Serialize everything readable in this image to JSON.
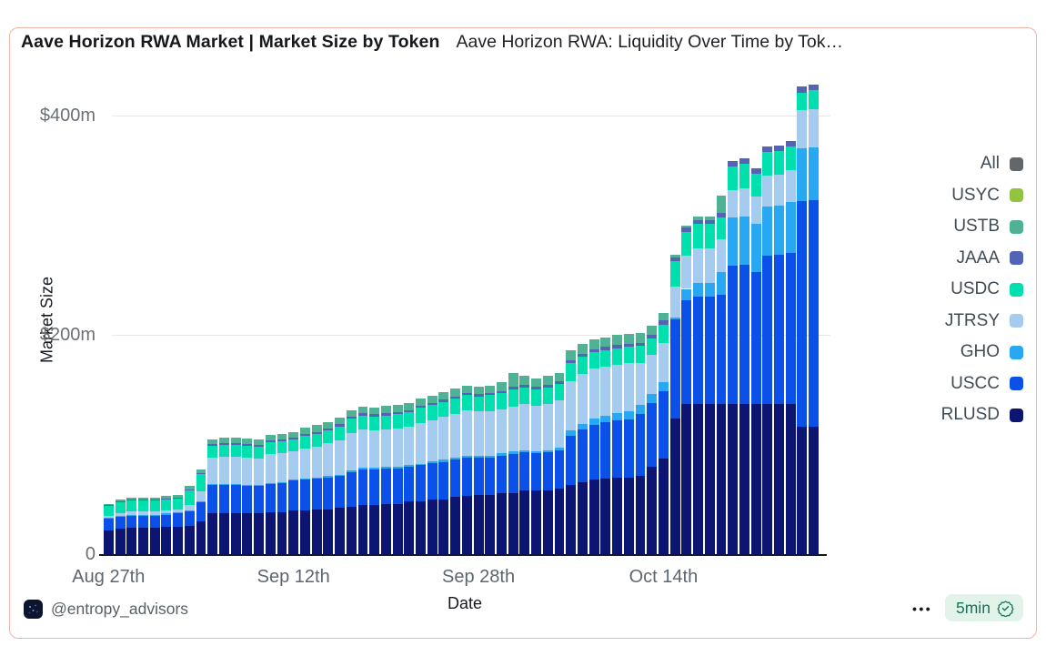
{
  "card": {
    "titles": {
      "primary": "Aave Horizon RWA Market | Market Size by Token",
      "secondary": "Aave Horizon RWA: Liquidity Over Time by Tok…"
    },
    "footer": {
      "handle": "@entropy_advisors",
      "menu": "•••",
      "badge": {
        "label": "5min",
        "icon": "check-seal-icon"
      }
    }
  },
  "chart_data": {
    "type": "bar",
    "variant": "stacked",
    "title": "Aave Horizon RWA Market | Market Size by Token",
    "xlabel": "Date",
    "ylabel": "Market Size",
    "unit": "$m",
    "ylim": [
      0,
      430
    ],
    "grid": "horizontal",
    "bar_count": 62,
    "y_ticks": [
      {
        "label": "$400m",
        "value": 400
      },
      {
        "label": "$200m",
        "value": 200
      },
      {
        "label": "0",
        "value": 0
      }
    ],
    "x_ticks": [
      {
        "label": "Aug 27th",
        "index": 0
      },
      {
        "label": "Sep 12th",
        "index": 16
      },
      {
        "label": "Sep 28th",
        "index": 32
      },
      {
        "label": "Oct 14th",
        "index": 48
      }
    ],
    "legend": {
      "position": "right",
      "items": [
        {
          "label": "All",
          "color": "#63666A"
        },
        {
          "label": "USYC",
          "color": "#93C43F"
        },
        {
          "label": "USTB",
          "color": "#4FB294"
        },
        {
          "label": "JAAA",
          "color": "#5464B4"
        },
        {
          "label": "USDC",
          "color": "#00E0AE"
        },
        {
          "label": "JTRSY",
          "color": "#A5CBEE"
        },
        {
          "label": "GHO",
          "color": "#28A7F2"
        },
        {
          "label": "USCC",
          "color": "#0B50E8"
        },
        {
          "label": "RLUSD",
          "color": "#0D1572"
        }
      ]
    },
    "series": [
      {
        "name": "RLUSD",
        "color": "#0D1572",
        "values": [
          22,
          23,
          24,
          24,
          24,
          25,
          25,
          26,
          30,
          37,
          37,
          37,
          37,
          37,
          38,
          38,
          40,
          40,
          41,
          41,
          42,
          43,
          45,
          45,
          46,
          46,
          48,
          48,
          50,
          50,
          52,
          53,
          54,
          54,
          56,
          56,
          58,
          58,
          58,
          60,
          63,
          66,
          68,
          69,
          70,
          70,
          71,
          80,
          87,
          124,
          137,
          137,
          137,
          137,
          137,
          137,
          137,
          137,
          137,
          137,
          116,
          116
        ]
      },
      {
        "name": "USCC",
        "color": "#0B50E8",
        "values": [
          10,
          11,
          11,
          11,
          11,
          11,
          12,
          13,
          17,
          26,
          26,
          26,
          25,
          25,
          26,
          27,
          27,
          28,
          28,
          29,
          29,
          32,
          32,
          32,
          32,
          32,
          32,
          33,
          33,
          34,
          34,
          35,
          34,
          34,
          34,
          35,
          35,
          34,
          35,
          35,
          45,
          48,
          50,
          51,
          52,
          53,
          57,
          58,
          62,
          90,
          95,
          98,
          98,
          100,
          126,
          127,
          120,
          135,
          136,
          138,
          206,
          207
        ]
      },
      {
        "name": "GHO",
        "color": "#28A7F2",
        "values": [
          1,
          1,
          1,
          1,
          1,
          1,
          1,
          1,
          1,
          1,
          1,
          1,
          1,
          1,
          1,
          1,
          1,
          1,
          1,
          1,
          1.5,
          1.5,
          1.5,
          1.5,
          1.5,
          1.5,
          1.5,
          1.5,
          2,
          2,
          2,
          2,
          2,
          2,
          2,
          2.5,
          2,
          2,
          2,
          2,
          5,
          5,
          6,
          6,
          7,
          7,
          8,
          8,
          8,
          2,
          10,
          12,
          12,
          20,
          44,
          44,
          44,
          45,
          45,
          46,
          48,
          48
        ]
      },
      {
        "name": "JTRSY",
        "color": "#A5CBEE",
        "values": [
          2,
          2,
          3,
          3,
          3,
          3,
          3,
          5,
          9,
          24,
          25,
          25,
          25,
          24,
          26,
          26,
          26,
          27,
          28,
          30,
          31,
          34,
          35,
          34,
          34,
          35,
          35,
          37,
          37,
          39,
          40,
          41,
          40,
          40,
          40,
          41,
          42,
          41,
          42,
          43,
          45,
          45,
          45,
          45,
          44,
          44,
          38,
          36,
          36,
          28,
          30,
          32,
          32,
          30,
          25,
          26,
          25,
          28,
          28,
          29,
          35,
          35
        ]
      },
      {
        "name": "USDC",
        "color": "#00E0AE",
        "values": [
          9,
          10,
          10,
          10,
          10,
          10,
          10,
          13,
          16,
          11,
          11,
          11,
          11,
          11,
          11,
          11,
          11,
          12,
          12,
          12,
          13,
          13,
          13,
          13,
          13,
          13,
          13,
          14,
          14,
          14,
          14,
          14,
          14,
          15,
          15,
          16,
          15,
          15,
          15,
          15,
          16,
          16,
          15,
          15,
          15,
          15,
          16,
          15,
          16,
          23,
          22,
          22,
          22,
          20,
          22,
          22,
          21,
          22,
          22,
          22,
          16,
          17
        ]
      },
      {
        "name": "JAAA",
        "color": "#5464B4",
        "values": [
          0.7,
          0.8,
          0.8,
          0.8,
          0.8,
          0.8,
          0.8,
          1,
          1,
          1.5,
          1.5,
          1.5,
          1.5,
          1.5,
          1.5,
          1.5,
          1.5,
          1.5,
          1.5,
          1.5,
          2,
          2,
          2,
          2,
          2,
          2,
          2,
          2,
          2,
          2,
          2,
          2,
          2,
          2,
          2,
          2.5,
          2.5,
          2.5,
          2.5,
          2.5,
          3,
          3,
          3,
          3,
          3,
          3,
          3,
          3,
          4,
          4,
          4,
          4,
          4,
          4,
          5,
          5,
          5,
          5,
          5,
          5,
          5.5,
          5.5
        ]
      },
      {
        "name": "USTB",
        "color": "#4FB294",
        "values": [
          1.3,
          2,
          2,
          2,
          2,
          2,
          2,
          3,
          3,
          4.5,
          5,
          5,
          5,
          5,
          5,
          5,
          5,
          5.5,
          6,
          6,
          6,
          6,
          6,
          6,
          6.5,
          6.5,
          6.5,
          6.5,
          6.5,
          7,
          7,
          7,
          7,
          7,
          7.5,
          12,
          8,
          8,
          8,
          8,
          9,
          9,
          9,
          9,
          9,
          9,
          9,
          8,
          7,
          2,
          2,
          3,
          3,
          16,
          0,
          0,
          0,
          0,
          0,
          0,
          0,
          0
        ]
      },
      {
        "name": "USYC",
        "color": "#93C43F",
        "values": [
          0,
          0,
          0,
          0,
          0,
          0,
          0,
          0,
          0,
          0,
          0,
          0,
          0,
          0,
          0,
          0,
          0,
          0,
          0,
          0,
          0,
          0,
          0,
          0,
          0,
          0,
          0,
          0,
          0,
          0,
          0,
          0,
          0,
          0,
          0,
          0,
          0,
          0,
          0,
          0,
          0,
          0,
          0,
          0,
          0,
          0,
          0,
          0,
          0,
          0,
          0,
          0,
          0,
          0,
          0,
          0,
          0,
          0,
          0,
          0,
          0,
          0
        ]
      }
    ]
  }
}
